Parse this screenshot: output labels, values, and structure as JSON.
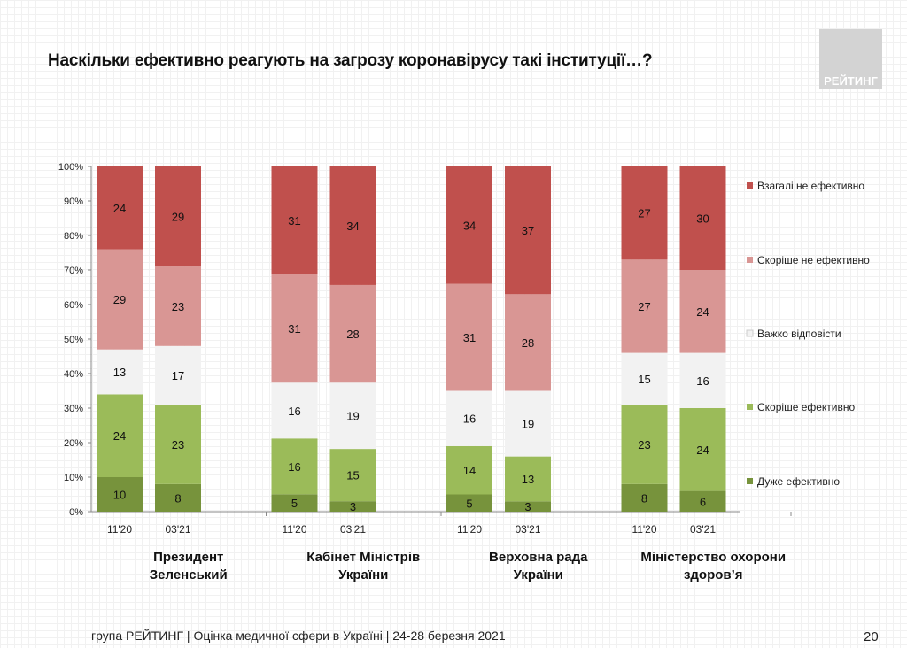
{
  "title": "Наскільки ефективно реагують на загрозу коронавірусу такі інституції…?",
  "logo": "РЕЙТИНГ",
  "footer": "група РЕЙТИНГ  |  Оцінка медичної сфери в Україні  | 24-28 березня 2021",
  "page_number": "20",
  "chart_data": {
    "type": "bar",
    "stacked": true,
    "normalized": true,
    "ylim": [
      0,
      100
    ],
    "yticks": [
      "0%",
      "10%",
      "20%",
      "30%",
      "40%",
      "50%",
      "60%",
      "70%",
      "80%",
      "90%",
      "100%"
    ],
    "groups": [
      {
        "label": [
          "Президент",
          "Зеленський"
        ],
        "bars": [
          {
            "label": "11'20",
            "values": [
              10,
              24,
              13,
              29,
              24
            ]
          },
          {
            "label": "03'21",
            "values": [
              8,
              23,
              17,
              23,
              29
            ]
          }
        ]
      },
      {
        "label": [
          "Кабінет Міністрів",
          "України"
        ],
        "bars": [
          {
            "label": "11'20",
            "values": [
              5,
              16,
              16,
              31,
              31
            ]
          },
          {
            "label": "03'21",
            "values": [
              3,
              15,
              19,
              28,
              34
            ]
          }
        ]
      },
      {
        "label": [
          "Верховна рада",
          "України"
        ],
        "bars": [
          {
            "label": "11'20",
            "values": [
              5,
              14,
              16,
              31,
              34
            ]
          },
          {
            "label": "03'21",
            "values": [
              3,
              13,
              19,
              28,
              37
            ]
          }
        ]
      },
      {
        "label": [
          "Міністерство охорони",
          "здоров’я"
        ],
        "bars": [
          {
            "label": "11'20",
            "values": [
              8,
              23,
              15,
              27,
              27
            ]
          },
          {
            "label": "03'21",
            "values": [
              6,
              24,
              16,
              24,
              30
            ]
          }
        ]
      }
    ],
    "series": [
      {
        "name": "Дуже ефективно",
        "color": "#77933c"
      },
      {
        "name": "Скоріше ефективно",
        "color": "#9bbb59"
      },
      {
        "name": "Важко відповісти",
        "color": "#f2f2f2"
      },
      {
        "name": "Скоріше не ефективно",
        "color": "#d99694"
      },
      {
        "name": "Взагалі не ефективно",
        "color": "#c0504d"
      }
    ],
    "legend": "right"
  }
}
